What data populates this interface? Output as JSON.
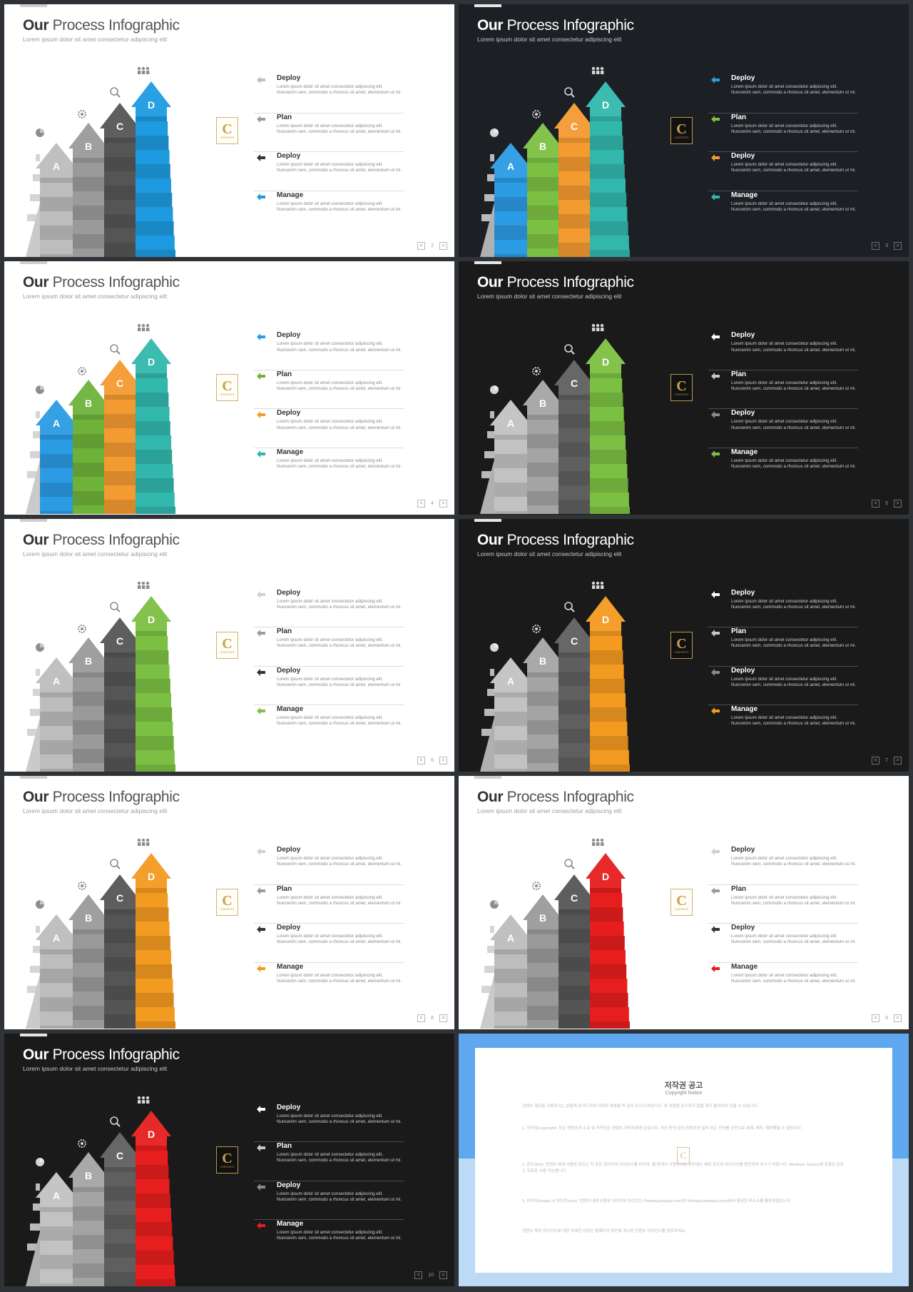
{
  "slide_title_bold": "Our",
  "slide_title_rest": "Process Infographic",
  "slide_subtitle": "Lorem ipsum dolor sit amet consectetur adipiscing elit",
  "step_desc": "Lorem ipsum dolor sit amet consectetur adipiscing elit. Nuncenim sem, commodo a rhoncus sit amet, elementum ut mi.",
  "logo_letter": "C",
  "logo_text": "CONTENTS",
  "pager_prev": "<",
  "pager_next": ">",
  "steps": {
    "step1": "Deploy",
    "step2": "Plan",
    "step3": "Deploy",
    "step4": "Manage"
  },
  "stair_letters": [
    "A",
    "B",
    "C",
    "D"
  ],
  "slides": [
    {
      "theme": "light",
      "page": "2",
      "colors": [
        "#bdbdbd",
        "#9a9a9a",
        "#555555",
        "#1e9be0"
      ],
      "arrows": [
        "#bdbdbd",
        "#9a9a9a",
        "#333333",
        "#1e9be0"
      ]
    },
    {
      "theme": "dark",
      "page": "3",
      "colors": [
        "#2b9be3",
        "#7cc043",
        "#f39a31",
        "#32b7ad"
      ],
      "arrows": [
        "#2b9be3",
        "#7cc043",
        "#f39a31",
        "#32b7ad"
      ]
    },
    {
      "theme": "light",
      "page": "4",
      "colors": [
        "#2b9be3",
        "#6fb23a",
        "#f39a31",
        "#32b7ad"
      ],
      "arrows": [
        "#2b9be3",
        "#6fb23a",
        "#f39a31",
        "#32b7ad"
      ]
    },
    {
      "theme": "black",
      "page": "5",
      "colors": [
        "#c2c2c2",
        "#a4a4a4",
        "#5f5f5f",
        "#7cc043"
      ],
      "arrows": [
        "#ffffff",
        "#c9c9c9",
        "#8a8a8a",
        "#7cc043"
      ]
    },
    {
      "theme": "light",
      "page": "6",
      "colors": [
        "#bdbdbd",
        "#9a9a9a",
        "#555555",
        "#7cc043"
      ],
      "arrows": [
        "#d0d0d0",
        "#9a9a9a",
        "#333333",
        "#7cc043"
      ]
    },
    {
      "theme": "black",
      "page": "7",
      "colors": [
        "#c2c2c2",
        "#a4a4a4",
        "#5f5f5f",
        "#f39a21"
      ],
      "arrows": [
        "#ffffff",
        "#c9c9c9",
        "#8a8a8a",
        "#f39a21"
      ]
    },
    {
      "theme": "light",
      "page": "8",
      "colors": [
        "#bdbdbd",
        "#9a9a9a",
        "#555555",
        "#f39a21"
      ],
      "arrows": [
        "#d0d0d0",
        "#9a9a9a",
        "#333333",
        "#f39a21"
      ]
    },
    {
      "theme": "light",
      "page": "9",
      "colors": [
        "#bdbdbd",
        "#9a9a9a",
        "#555555",
        "#e61e1e"
      ],
      "arrows": [
        "#d0d0d0",
        "#9a9a9a",
        "#333333",
        "#e61e1e"
      ]
    },
    {
      "theme": "black",
      "page": "10",
      "colors": [
        "#c2c2c2",
        "#a4a4a4",
        "#5f5f5f",
        "#e61e1e"
      ],
      "arrows": [
        "#ffffff",
        "#c9c9c9",
        "#8a8a8a",
        "#e61e1e"
      ]
    }
  ],
  "notice": {
    "title": "저작권 공고",
    "subtitle": "Copyright Notice",
    "p1": "컨텐츠 제공을 사용하시는 분들께 감사드리며 아래의 내용을 꼭 읽어 주시기 바랍니다. 위 내용을 준수하지 않을 경우 불이익이 있을 수 있습니다.",
    "p2": "1. 저작권(copyright): 모든 컨텐츠의 소유 및 저작권은 컨텐츠 제작자에게 있습니다. 사전 동의 없이 컨텐츠의 일부 또는 전부를 무단으로 복제, 배포, 재판매할 수 없습니다.",
    "p3": "2. 폰트(font): 컨텐츠 내에 사용된 폰트는 각 폰트 제작사의 라이선스를 따르며, 웹 등에서 사용하시는 경우에는 해당 폰트의 라이선스를 확인하여 주시기 바랍니다. Windows System에 포함된 폰트는 무료로 사용 가능합니다.",
    "p4": "3. 이미지(image) & 아이콘(icon): 컨텐츠 내에 사용된 이미지와 아이콘은 Pixabay(pixabay.com)와 Webalys(webalys.com)에서 제공한 리소스를 활용하였습니다.",
    "p5": "컨텐츠 제공 라이선스에 대한 자세한 사항은 홈페이지 하단에 게시된 컨텐츠 라이선스를 참조하세요."
  }
}
